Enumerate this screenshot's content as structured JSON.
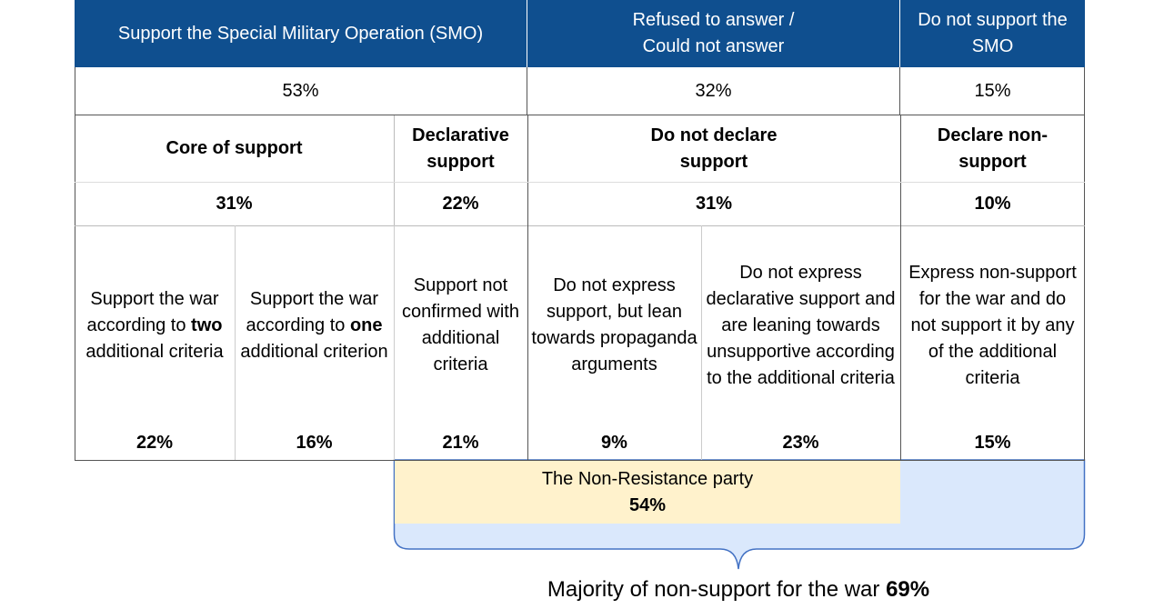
{
  "header": {
    "columns": [
      "Support the Special Military Operation (SMO)",
      "Refused to answer / Could not answer",
      "Do not support the SMO"
    ]
  },
  "totals": [
    "53%",
    "32%",
    "15%"
  ],
  "groups": [
    {
      "label": "Core of support",
      "value": "31%"
    },
    {
      "label": "Declarative support",
      "value": "22%"
    },
    {
      "label": "Do not declare support",
      "value": "31%"
    },
    {
      "label": "Declare non-support",
      "value": "10%"
    }
  ],
  "segments": [
    {
      "text": [
        "Support the war according to ",
        "two",
        " additional criteria"
      ],
      "value": "22%"
    },
    {
      "text": [
        "Support the war according to ",
        "one",
        " additional criterion"
      ],
      "value": "16%"
    },
    {
      "text": [
        "Support not confirmed with additional criteria"
      ],
      "value": "21%"
    },
    {
      "text": [
        "Do not express support, but lean towards propaganda arguments"
      ],
      "value": "9%"
    },
    {
      "text": [
        "Do not express declarative support and are leaning towards unsupportive according to the additional criteria"
      ],
      "value": "23%"
    },
    {
      "text": [
        "Express non-support for the war and do not support it by any of the additional criteria"
      ],
      "value": "15%"
    }
  ],
  "non_resistance": {
    "label": "The Non-Resistance party",
    "value": "54%"
  },
  "majority": {
    "label": "Majority of non-support for the war",
    "value": "69%"
  }
}
